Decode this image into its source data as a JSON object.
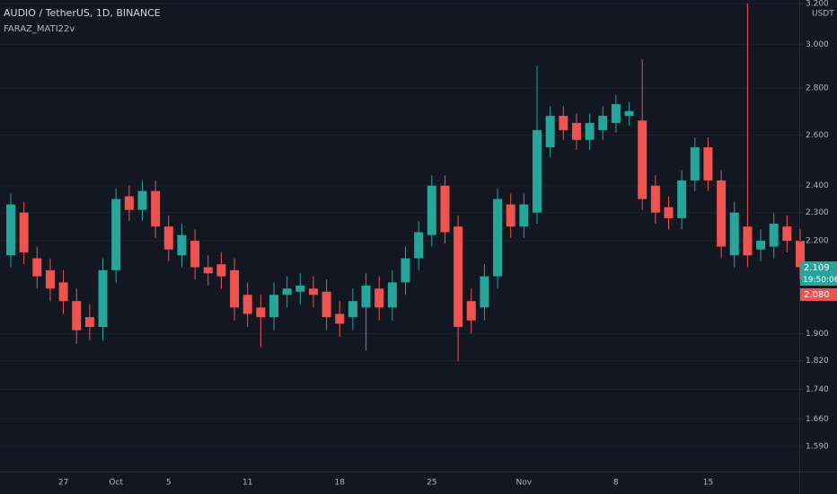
{
  "chart_data": {
    "type": "candlestick",
    "title": "AUDIO / TetherUS, 1D, BINANCE",
    "subtitle": "FARAZ_MATI22v",
    "y_unit": "USDT",
    "categories": [
      null,
      null,
      null,
      null,
      "27",
      null,
      null,
      null,
      "Oct",
      null,
      null,
      null,
      "5",
      null,
      null,
      null,
      null,
      null,
      "11",
      null,
      null,
      null,
      null,
      null,
      null,
      "18",
      null,
      null,
      null,
      null,
      null,
      null,
      "25",
      null,
      null,
      null,
      null,
      null,
      null,
      "Nov",
      null,
      null,
      null,
      null,
      null,
      null,
      "8",
      null,
      null,
      null,
      null,
      null,
      null,
      "15",
      null,
      null,
      null,
      null,
      null,
      null,
      null
    ],
    "open": [
      2.15,
      2.3,
      2.14,
      2.1,
      2.06,
      2.0,
      1.95,
      1.92,
      2.1,
      2.36,
      2.31,
      2.38,
      2.25,
      2.15,
      2.2,
      2.11,
      2.12,
      2.1,
      2.02,
      1.98,
      1.95,
      2.02,
      2.03,
      2.04,
      2.03,
      1.96,
      1.95,
      1.98,
      2.04,
      1.98,
      2.06,
      2.14,
      2.22,
      2.4,
      2.25,
      2.0,
      1.98,
      2.08,
      2.33,
      2.25,
      2.3,
      2.55,
      2.68,
      2.65,
      2.58,
      2.62,
      2.65,
      2.68,
      2.66,
      2.4,
      2.32,
      2.28,
      2.42,
      2.55,
      2.42,
      2.15,
      2.25,
      2.17,
      2.18,
      2.25,
      2.2
    ],
    "high": [
      2.37,
      2.34,
      2.18,
      2.14,
      2.1,
      2.04,
      1.99,
      2.14,
      2.39,
      2.4,
      2.42,
      2.42,
      2.29,
      2.26,
      2.24,
      2.15,
      2.16,
      2.14,
      2.06,
      2.02,
      2.06,
      2.08,
      2.09,
      2.08,
      2.07,
      2.0,
      2.04,
      2.09,
      2.08,
      2.1,
      2.18,
      2.27,
      2.44,
      2.44,
      2.29,
      2.04,
      2.12,
      2.39,
      2.37,
      2.37,
      2.9,
      2.72,
      2.72,
      2.69,
      2.69,
      2.72,
      2.77,
      2.74,
      2.93,
      2.44,
      2.36,
      2.46,
      2.59,
      2.59,
      2.46,
      2.34,
      3.2,
      2.24,
      2.3,
      2.29,
      2.24
    ],
    "low": [
      2.11,
      2.12,
      2.04,
      2.0,
      1.96,
      1.87,
      1.88,
      1.88,
      2.06,
      2.27,
      2.27,
      2.21,
      2.13,
      2.11,
      2.07,
      2.05,
      2.04,
      1.94,
      1.92,
      1.86,
      1.91,
      1.98,
      1.99,
      1.98,
      1.91,
      1.89,
      1.91,
      1.85,
      1.94,
      1.94,
      2.02,
      2.1,
      2.18,
      2.19,
      1.82,
      1.9,
      1.94,
      2.04,
      2.21,
      2.21,
      2.26,
      2.51,
      2.58,
      2.54,
      2.54,
      2.58,
      2.61,
      2.64,
      2.31,
      2.26,
      2.24,
      2.24,
      2.38,
      2.38,
      2.14,
      2.11,
      2.11,
      2.13,
      2.14,
      2.16,
      2.07
    ],
    "close": [
      2.33,
      2.16,
      2.08,
      2.04,
      2.0,
      1.91,
      1.92,
      2.1,
      2.35,
      2.31,
      2.38,
      2.25,
      2.17,
      2.22,
      2.11,
      2.09,
      2.08,
      1.98,
      1.96,
      1.95,
      2.02,
      2.04,
      2.05,
      2.02,
      1.95,
      1.93,
      2.0,
      2.05,
      1.98,
      2.06,
      2.14,
      2.23,
      2.4,
      2.23,
      1.92,
      1.94,
      2.08,
      2.35,
      2.25,
      2.33,
      2.62,
      2.68,
      2.62,
      2.58,
      2.65,
      2.68,
      2.73,
      2.7,
      2.35,
      2.3,
      2.28,
      2.42,
      2.55,
      2.42,
      2.18,
      2.3,
      2.15,
      2.2,
      2.26,
      2.2,
      2.11
    ],
    "up_color": "#26a69a",
    "down_color": "#ef5350",
    "log_scale": true,
    "grid": true,
    "ylim": [
      1.528,
      3.218
    ],
    "yticks": [
      {
        "value": 3.2,
        "label": "3.200"
      },
      {
        "value": 3.0,
        "label": "3.000"
      },
      {
        "value": 2.8,
        "label": "2.800"
      },
      {
        "value": 2.6,
        "label": "2.600"
      },
      {
        "value": 2.4,
        "label": "2.400"
      },
      {
        "value": 2.3,
        "label": "2.300"
      },
      {
        "value": 2.2,
        "label": "2.200"
      },
      {
        "value": 1.9,
        "label": "1.900"
      },
      {
        "value": 1.82,
        "label": "1.820"
      },
      {
        "value": 1.74,
        "label": "1.740"
      },
      {
        "value": 1.66,
        "label": "1.660"
      },
      {
        "value": 1.59,
        "label": "1.590"
      }
    ],
    "price_labels": [
      "2.109",
      "19:50:06",
      "2.080"
    ]
  }
}
